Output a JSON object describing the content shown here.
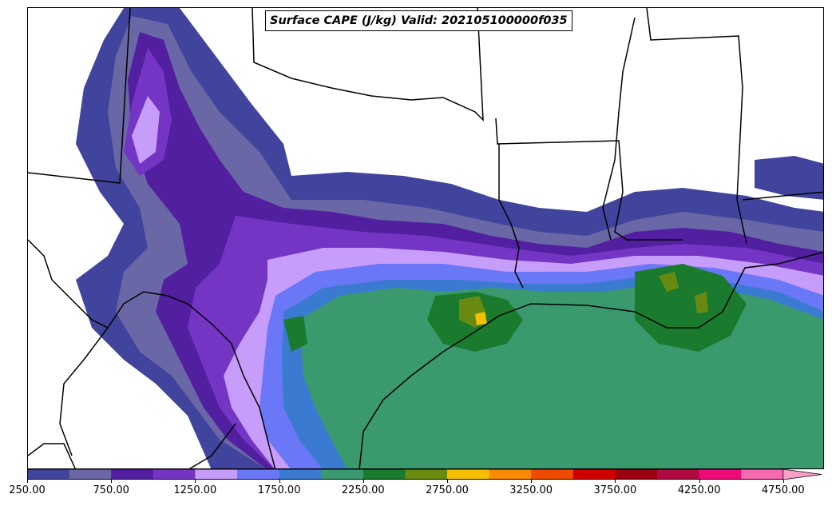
{
  "title": "Surface CAPE (J/kg) Valid: 202105100000f035",
  "colorbar": {
    "levels": [
      250,
      500,
      750,
      1000,
      1250,
      1500,
      1750,
      2000,
      2250,
      2500,
      2750,
      3000,
      3250,
      3500,
      3750,
      4000,
      4250,
      4500,
      4750
    ],
    "colors": [
      "#41449c",
      "#6a67a6",
      "#521fa0",
      "#7435c4",
      "#c79dfb",
      "#6a77f6",
      "#3a7bd1",
      "#3a9a6e",
      "#1a7a2e",
      "#688a10",
      "#f6c000",
      "#f88a00",
      "#ee4a00",
      "#d00000",
      "#9a0010",
      "#b00a40",
      "#ee0a78",
      "#f86ab0",
      "#f8a0c8"
    ],
    "extend": "max",
    "tick_labels": [
      "250.00",
      "750.00",
      "1250.00",
      "1750.00",
      "2250.00",
      "2750.00",
      "3250.00",
      "3750.00",
      "4250.00",
      "4750.00"
    ]
  }
}
